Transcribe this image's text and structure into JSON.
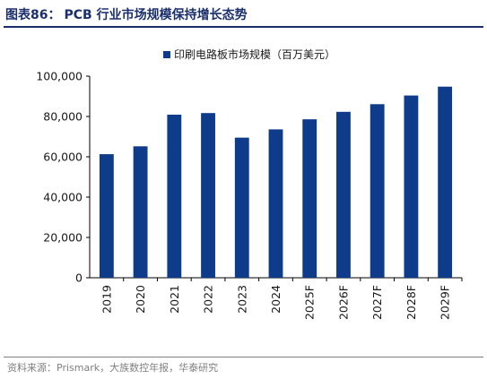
{
  "header": {
    "figure_label": "图表86：",
    "title": "PCB 行业市场规模保持增长态势"
  },
  "source": "资料来源：Prismark，大族数控年报，华泰研究",
  "colors": {
    "bar": "#0f3c8a",
    "accent": "#1a2f6b"
  },
  "chart_data": {
    "type": "bar",
    "categories": [
      "2019",
      "2020",
      "2021",
      "2022",
      "2023",
      "2024",
      "2025F",
      "2026F",
      "2027F",
      "2028F",
      "2029F"
    ],
    "series": [
      {
        "name": "印刷电路板市场规模（百万美元）",
        "values": [
          61300,
          65200,
          80900,
          81700,
          69500,
          73600,
          78600,
          82300,
          86100,
          90400,
          94800
        ]
      }
    ],
    "yticks": [
      "0",
      "20,000",
      "40,000",
      "60,000",
      "80,000",
      "100,000"
    ],
    "ylim": [
      0,
      100000
    ],
    "legend": "top-center",
    "grid": false
  }
}
